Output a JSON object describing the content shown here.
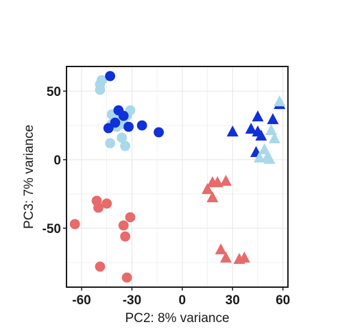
{
  "chart_data": {
    "type": "scatter",
    "title": "",
    "xlabel": "PC2: 8% variance",
    "ylabel": "PC3: 7% variance",
    "xlim": [
      -69,
      63
    ],
    "ylim": [
      -93,
      68
    ],
    "xticks": [
      -60,
      -30,
      0,
      30,
      60
    ],
    "xtick_labels": [
      "-60",
      "-30",
      "0",
      "30",
      "60"
    ],
    "yticks": [
      50,
      0,
      -50
    ],
    "ytick_labels": [
      "50",
      "0",
      "-50"
    ],
    "grid": true,
    "legend": "none",
    "colors": {
      "light_blue": "#a8d8ea",
      "dark_blue": "#1030d8",
      "salmon": "#e86a6a",
      "grid": "#e6e6e6",
      "frame": "#1a1a1a"
    },
    "series": [
      {
        "marker": "circle",
        "color": "#a8d8ea",
        "points": [
          [
            -48,
            58
          ],
          [
            -49,
            55
          ],
          [
            -49,
            51
          ],
          [
            -42,
            33
          ],
          [
            -37,
            33
          ],
          [
            -31,
            36
          ],
          [
            -33,
            32
          ],
          [
            -42,
            26
          ],
          [
            -39,
            24
          ],
          [
            -35,
            26
          ],
          [
            -43,
            12
          ],
          [
            -36,
            16
          ],
          [
            -34,
            10
          ]
        ]
      },
      {
        "marker": "circle",
        "color": "#1030d8",
        "points": [
          [
            -43,
            61
          ],
          [
            -38,
            36
          ],
          [
            -35,
            32
          ],
          [
            -40,
            27
          ],
          [
            -44,
            23
          ],
          [
            -32,
            24
          ],
          [
            -24,
            25
          ],
          [
            -14,
            20
          ]
        ]
      },
      {
        "marker": "triangle",
        "color": "#1030d8",
        "points": [
          [
            58,
            40
          ],
          [
            45,
            31
          ],
          [
            54,
            29
          ],
          [
            30,
            20
          ],
          [
            41,
            22
          ],
          [
            45,
            20
          ],
          [
            47,
            17
          ],
          [
            44,
            5
          ]
        ]
      },
      {
        "marker": "triangle",
        "color": "#a8d8ea",
        "points": [
          [
            58,
            42
          ],
          [
            53,
            21
          ],
          [
            55,
            15
          ],
          [
            49,
            7
          ],
          [
            46,
            1
          ],
          [
            51,
            2
          ],
          [
            52,
            0
          ]
        ]
      },
      {
        "marker": "circle",
        "color": "#e86a6a",
        "points": [
          [
            -51,
            -30
          ],
          [
            -50,
            -35
          ],
          [
            -45,
            -32
          ],
          [
            -64,
            -47
          ],
          [
            -31,
            -42
          ],
          [
            -35,
            -48
          ],
          [
            -34,
            -56
          ],
          [
            -49,
            -78
          ],
          [
            -33,
            -86
          ]
        ]
      },
      {
        "marker": "triangle",
        "color": "#e86a6a",
        "points": [
          [
            18,
            -17
          ],
          [
            21,
            -17
          ],
          [
            26,
            -16
          ],
          [
            15,
            -22
          ],
          [
            18,
            -28
          ],
          [
            23,
            -66
          ],
          [
            26,
            -72
          ],
          [
            34,
            -73
          ],
          [
            37,
            -72
          ]
        ]
      }
    ]
  }
}
